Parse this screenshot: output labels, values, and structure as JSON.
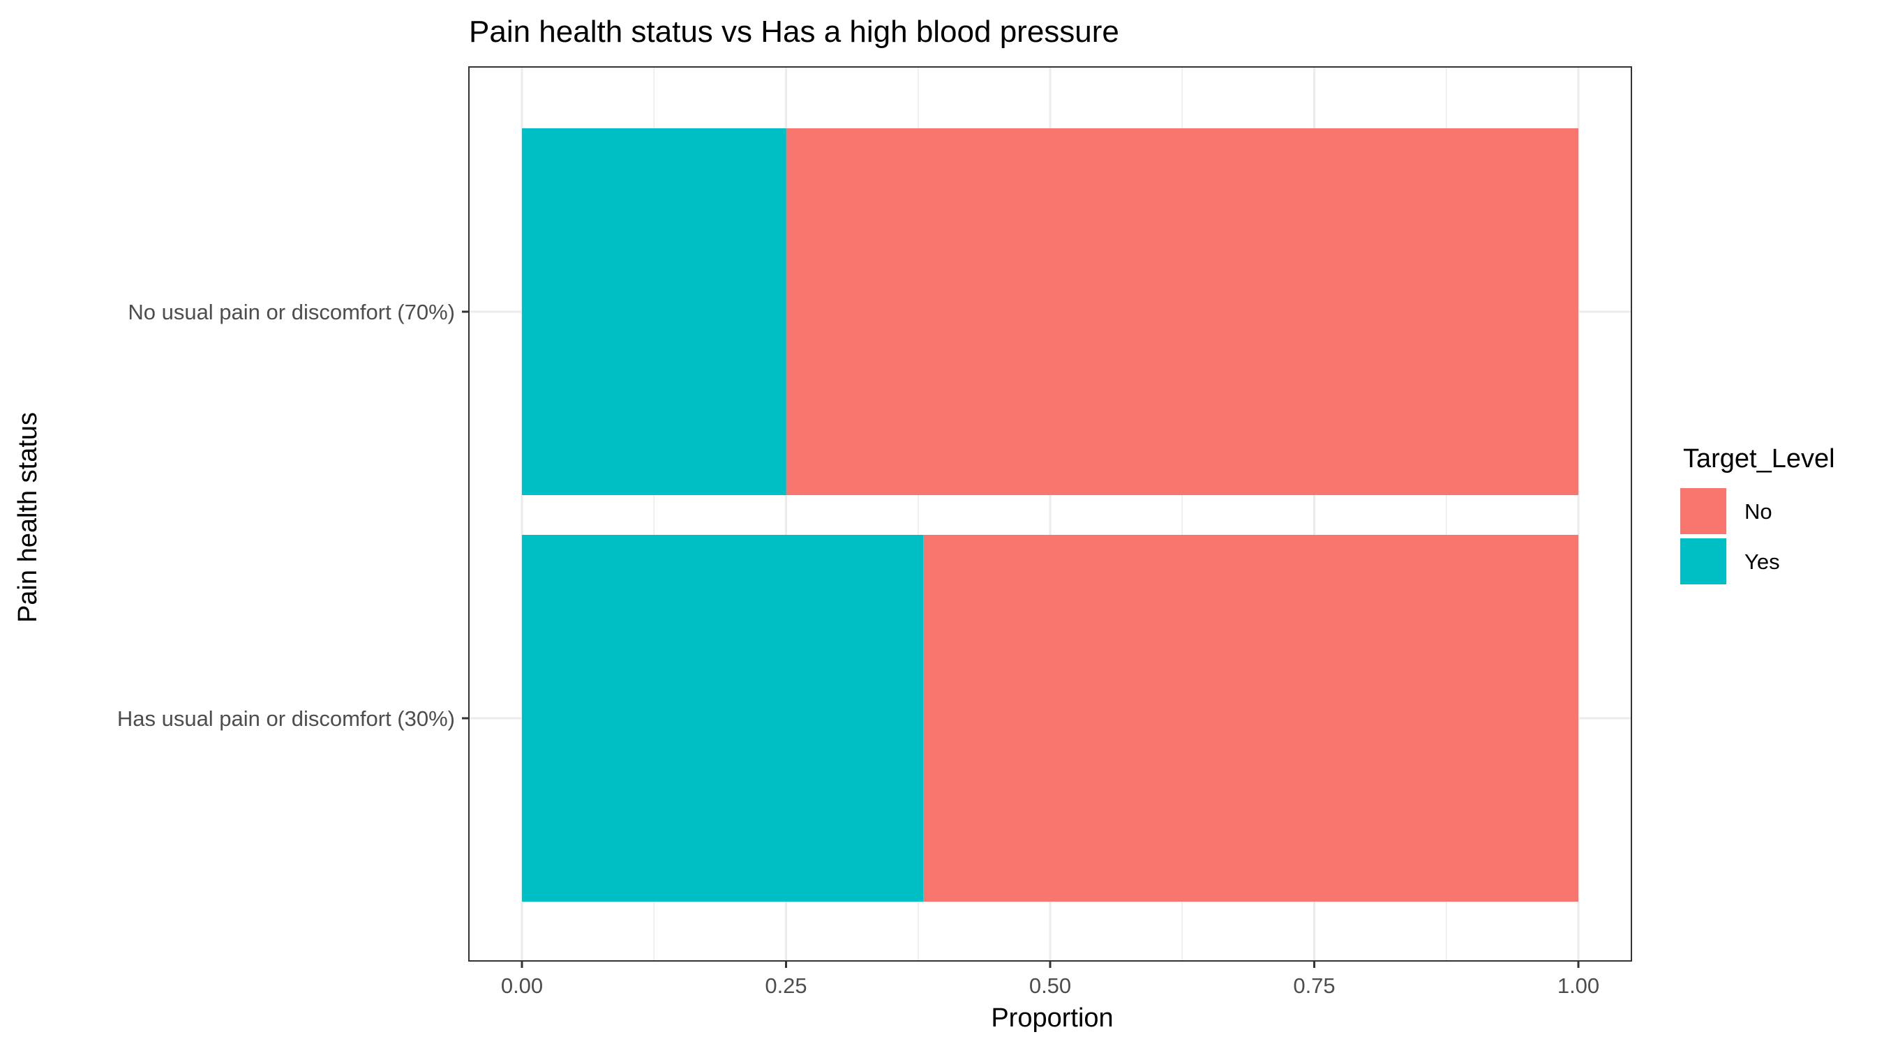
{
  "chart_data": {
    "type": "bar",
    "orientation": "horizontal",
    "stacked": true,
    "title": "Pain health status vs Has a high blood pressure",
    "xlabel": "Proportion",
    "ylabel": "Pain health status",
    "xlim": [
      0,
      1
    ],
    "x_ticks": [
      "0.00",
      "0.25",
      "0.50",
      "0.75",
      "1.00"
    ],
    "x_tick_values": [
      0,
      0.25,
      0.5,
      0.75,
      1.0
    ],
    "categories": [
      "No usual pain or discomfort (70%)",
      "Has usual pain or discomfort (30%)"
    ],
    "series": [
      {
        "name": "Yes",
        "color": "#00BFC4",
        "values": [
          0.25,
          0.38
        ]
      },
      {
        "name": "No",
        "color": "#F8766D",
        "values": [
          0.75,
          0.62
        ]
      }
    ],
    "legend": {
      "title": "Target_Level",
      "placement": "right",
      "entries": [
        {
          "label": "No",
          "color": "#F8766D"
        },
        {
          "label": "Yes",
          "color": "#00BFC4"
        }
      ]
    },
    "grid": true
  }
}
